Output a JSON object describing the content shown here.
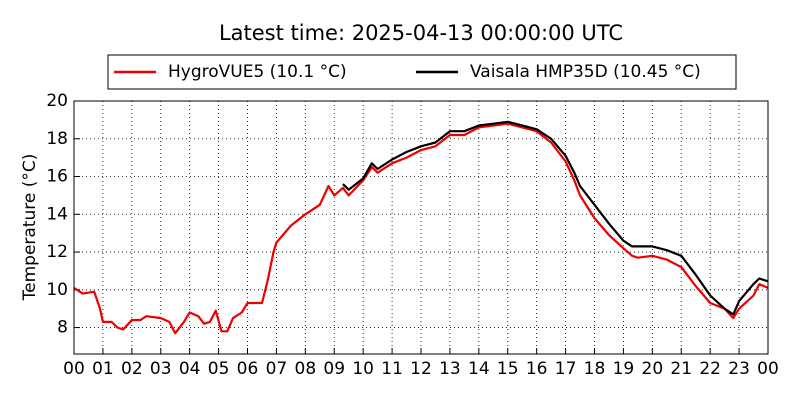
{
  "chart_data": {
    "type": "line",
    "title": "Latest time: 2025-04-13 00:00:00 UTC",
    "y_label": "Temperature (°C)",
    "x": [
      0,
      0.3,
      0.7,
      0.9,
      1.0,
      1.3,
      1.5,
      1.7,
      2.0,
      2.3,
      2.5,
      3.0,
      3.3,
      3.5,
      3.8,
      4.0,
      4.3,
      4.5,
      4.7,
      4.9,
      5.1,
      5.3,
      5.5,
      5.8,
      6.0,
      6.5,
      6.7,
      6.9,
      7.0,
      7.5,
      8.0,
      8.5,
      8.8,
      9.0,
      9.3,
      9.5,
      10.0,
      10.3,
      10.5,
      11.0,
      11.5,
      12.0,
      12.5,
      13.0,
      13.5,
      14.0,
      14.5,
      15.0,
      15.5,
      16.0,
      16.5,
      17.0,
      17.3,
      17.5,
      18.0,
      18.5,
      19.0,
      19.3,
      19.5,
      20.0,
      20.5,
      21.0,
      21.5,
      22.0,
      22.5,
      22.8,
      23.0,
      23.5,
      23.7,
      24
    ],
    "series": [
      {
        "name": "HygroVUE5 (10.1 °C)",
        "color": "#ee0000",
        "values": [
          10.1,
          9.8,
          9.9,
          9.0,
          8.3,
          8.3,
          8.0,
          7.9,
          8.4,
          8.4,
          8.6,
          8.5,
          8.3,
          7.7,
          8.3,
          8.8,
          8.6,
          8.2,
          8.3,
          8.9,
          7.8,
          7.8,
          8.5,
          8.8,
          9.3,
          9.3,
          10.5,
          12.0,
          12.5,
          13.4,
          14.0,
          14.5,
          15.5,
          15.0,
          15.4,
          15.0,
          15.8,
          16.5,
          16.2,
          16.7,
          17.0,
          17.4,
          17.6,
          18.2,
          18.2,
          18.6,
          18.7,
          18.8,
          18.6,
          18.4,
          17.8,
          16.8,
          15.8,
          15.0,
          13.8,
          12.9,
          12.2,
          11.8,
          11.7,
          11.8,
          11.6,
          11.2,
          10.2,
          9.3,
          9.0,
          8.5,
          9.0,
          9.7,
          10.3,
          10.1
        ]
      },
      {
        "name": "Vaisala HMP35D (10.45 °C)",
        "color": "#000000",
        "values": [
          null,
          null,
          null,
          null,
          null,
          null,
          null,
          null,
          null,
          null,
          null,
          null,
          null,
          null,
          null,
          null,
          null,
          null,
          null,
          null,
          null,
          null,
          null,
          null,
          null,
          null,
          null,
          null,
          null,
          null,
          null,
          null,
          null,
          null,
          15.6,
          15.3,
          15.9,
          16.7,
          16.4,
          16.9,
          17.3,
          17.6,
          17.8,
          18.4,
          18.4,
          18.7,
          18.8,
          18.9,
          18.7,
          18.5,
          18.0,
          17.1,
          16.2,
          15.5,
          14.5,
          13.5,
          12.6,
          12.3,
          12.3,
          12.3,
          12.1,
          11.8,
          10.8,
          9.7,
          9.0,
          8.7,
          9.4,
          10.3,
          10.6,
          10.45
        ]
      }
    ],
    "xlim": [
      0,
      24
    ],
    "xticks": [
      {
        "value": 0,
        "label": "00"
      },
      {
        "value": 1,
        "label": "01"
      },
      {
        "value": 2,
        "label": "02"
      },
      {
        "value": 3,
        "label": "03"
      },
      {
        "value": 4,
        "label": "04"
      },
      {
        "value": 5,
        "label": "05"
      },
      {
        "value": 6,
        "label": "06"
      },
      {
        "value": 7,
        "label": "07"
      },
      {
        "value": 8,
        "label": "08"
      },
      {
        "value": 9,
        "label": "09"
      },
      {
        "value": 10,
        "label": "10"
      },
      {
        "value": 11,
        "label": "11"
      },
      {
        "value": 12,
        "label": "12"
      },
      {
        "value": 13,
        "label": "13"
      },
      {
        "value": 14,
        "label": "14"
      },
      {
        "value": 15,
        "label": "15"
      },
      {
        "value": 16,
        "label": "16"
      },
      {
        "value": 17,
        "label": "17"
      },
      {
        "value": 18,
        "label": "18"
      },
      {
        "value": 19,
        "label": "19"
      },
      {
        "value": 20,
        "label": "20"
      },
      {
        "value": 21,
        "label": "21"
      },
      {
        "value": 22,
        "label": "22"
      },
      {
        "value": 23,
        "label": "23"
      },
      {
        "value": 24,
        "label": "00"
      }
    ],
    "ylim": [
      6.6,
      20
    ],
    "yticks": [
      8,
      10,
      12,
      14,
      16,
      18,
      20
    ],
    "grid": true,
    "legend": "top"
  }
}
